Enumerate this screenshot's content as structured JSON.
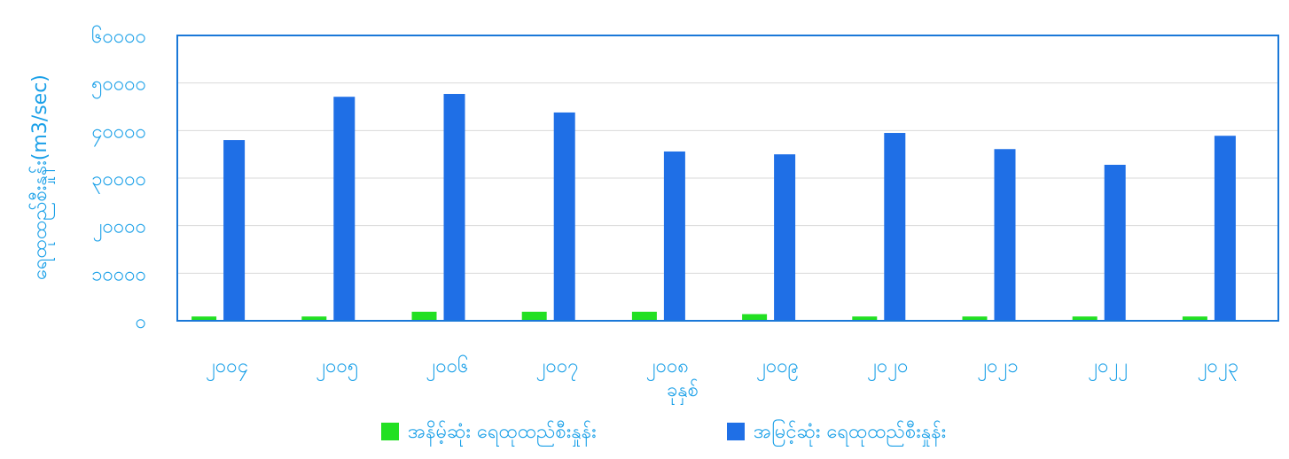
{
  "chart_data": {
    "type": "bar",
    "title": "",
    "xlabel": "ခုနှစ်",
    "ylabel": "ရေထုထည်စီးနှုန်း(m3/sec)",
    "ylim": [
      0,
      60000
    ],
    "yticks": [
      "၀",
      "၁၀၀၀၀",
      "၂၀၀၀၀",
      "၃၀၀၀၀",
      "၄၀၀၀၀",
      "၅၀၀၀၀",
      "၆၀၀၀၀"
    ],
    "ytick_values": [
      0,
      10000,
      20000,
      30000,
      40000,
      50000,
      60000
    ],
    "grid": true,
    "legend_position": "bottom",
    "categories": [
      "၂၀၀၄",
      "၂၀၀၅",
      "၂၀၀၆",
      "၂၀၀၇",
      "၂၀၀၈",
      "၂၀၀၉",
      "၂၀၂၀",
      "၂၀၂၁",
      "၂၀၂၂",
      "၂၀၂၃"
    ],
    "series": [
      {
        "name": "အနိမ့်ဆုံး ရေထုထည်စီးနှုန်း",
        "color": "#22e022",
        "values": [
          900,
          900,
          1900,
          1900,
          1900,
          1400,
          900,
          900,
          900,
          900
        ]
      },
      {
        "name": "အမြင့်ဆုံး ရေထုထည်စီးနှုန်း",
        "color": "#1f6fe6",
        "values": [
          38000,
          47100,
          47700,
          43800,
          35600,
          35000,
          39500,
          36100,
          32800,
          38900
        ]
      }
    ],
    "axis_color": "#1a78d8",
    "grid_color": "#d9d9d9"
  }
}
